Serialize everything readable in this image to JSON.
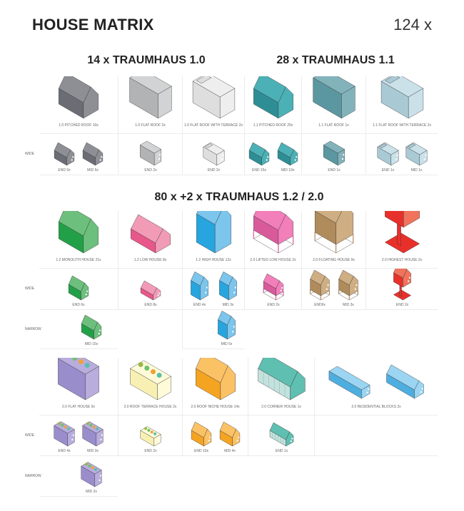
{
  "header": {
    "title": "HOUSE MATRIX",
    "total": "124 x"
  },
  "row_labels": {
    "wide": "WIDE",
    "narrow": "NARROW"
  },
  "sections": [
    {
      "titles": [
        "14 x  TRAUMHAUS 1.0",
        "28 x  TRAUMHAUS 1.1"
      ],
      "cells": [
        {
          "label": "1.0 PITCHED ROOF 10x",
          "shape": "pitched",
          "colors": [
            "#6b6d74",
            "#8d8f95"
          ],
          "wide": [
            "END 5x",
            "MID 5x"
          ],
          "narrow": []
        },
        {
          "label": "1.0 FLAT ROOF 2x",
          "shape": "flat",
          "colors": [
            "#b2b3b5",
            "#d2d3d4"
          ],
          "wide": [
            "END 2x"
          ],
          "narrow": []
        },
        {
          "label": "1.0 FLAT ROOF WITH TERRACE 2x",
          "shape": "terrace",
          "colors": [
            "#dedede",
            "#eeeeee"
          ],
          "wide": [
            "END 2x"
          ],
          "narrow": []
        },
        {
          "label": "1.1 PITCHED ROOF 25x",
          "shape": "pitched",
          "colors": [
            "#2e8e95",
            "#4bb1b6"
          ],
          "wide": [
            "END 15x",
            "MID 10x"
          ],
          "narrow": []
        },
        {
          "label": "1.1 FLAT ROOF 1x",
          "shape": "flat",
          "colors": [
            "#5b97a0",
            "#83b3ba"
          ],
          "wide": [
            "END 1x"
          ],
          "narrow": []
        },
        {
          "label": "1.1 FLAT ROOF WITH  TERRACE 2x",
          "shape": "terrace",
          "colors": [
            "#a9cad5",
            "#cbe1e9"
          ],
          "wide": [
            "END 1x",
            "MID 1x"
          ],
          "narrow": []
        }
      ]
    },
    {
      "titles": [
        "80 x +2 x TRAUMHAUS 1.2 / 2.0"
      ],
      "cells": [
        {
          "label": "1.2 MONOLITH HOUSE 21x",
          "shape": "monolith",
          "colors": [
            "#22a048",
            "#6dbf7d"
          ],
          "wide": [
            "END 6x"
          ],
          "narrow": [
            "MID 15x"
          ]
        },
        {
          "label": "1.2 LOW HOUSE 8x",
          "shape": "low",
          "colors": [
            "#e8578a",
            "#f29bb7"
          ],
          "wide": [
            "END 8x"
          ],
          "narrow": []
        },
        {
          "label": "1.2 HIGH HOUSE 12x",
          "shape": "high",
          "colors": [
            "#27a5df",
            "#7cc5ec"
          ],
          "wide": [
            "END 4x",
            "MID 3x"
          ],
          "narrow": [
            "MID 5x"
          ]
        },
        {
          "label": "2.0 LIFTED LOW HOUSE 2x",
          "shape": "lifted",
          "colors": [
            "#d95a9b",
            "#f27fb9"
          ],
          "wide": [
            "END 2x"
          ],
          "narrow": []
        },
        {
          "label": "2.0 FLOATING HOUSE 9x",
          "shape": "floating",
          "colors": [
            "#b08b5b",
            "#cfae83"
          ],
          "wide": [
            "END6x",
            "MID 3x"
          ],
          "narrow": []
        },
        {
          "label": "2.0 HIGHEST HOUSE 2x",
          "shape": "highest",
          "colors": [
            "#e8302b",
            "#f0735c"
          ],
          "wide": [
            "END 2x"
          ],
          "narrow": []
        }
      ]
    },
    {
      "titles": [],
      "cells": [
        {
          "label": "2.0 FLAT HOUSE 9x",
          "shape": "flathouse",
          "colors": [
            "#9a8dcc",
            "#b9addd"
          ],
          "wide": [
            "END 4x",
            "MID 3x"
          ],
          "narrow": [
            "MID 2x"
          ]
        },
        {
          "label": "2.0 ROOF TERRACE HOUSE 2x",
          "shape": "roofterrace",
          "colors": [
            "#f8f0b3",
            "#fffbd9"
          ],
          "wide": [
            "END 2x"
          ],
          "narrow": []
        },
        {
          "label": "2.0 ROOF NICHE HOUSE 14x",
          "shape": "niche",
          "colors": [
            "#f5a422",
            "#fbc265"
          ],
          "wide": [
            "END 10x",
            "MID 4x"
          ],
          "narrow": []
        },
        {
          "label": "2.0 CORNER HOUSE 1x",
          "shape": "greenhouse",
          "colors": [
            "#c4e2dd",
            "#5fbfb1"
          ],
          "wide": [
            "END 1x"
          ],
          "narrow": []
        },
        {
          "label": "2.0 RESIDENTIAL BLOCKS 2x",
          "shape": "blocks",
          "colors": [
            "#4eaee0",
            "#9bd5f1"
          ],
          "wide": [],
          "narrow": []
        }
      ]
    }
  ]
}
